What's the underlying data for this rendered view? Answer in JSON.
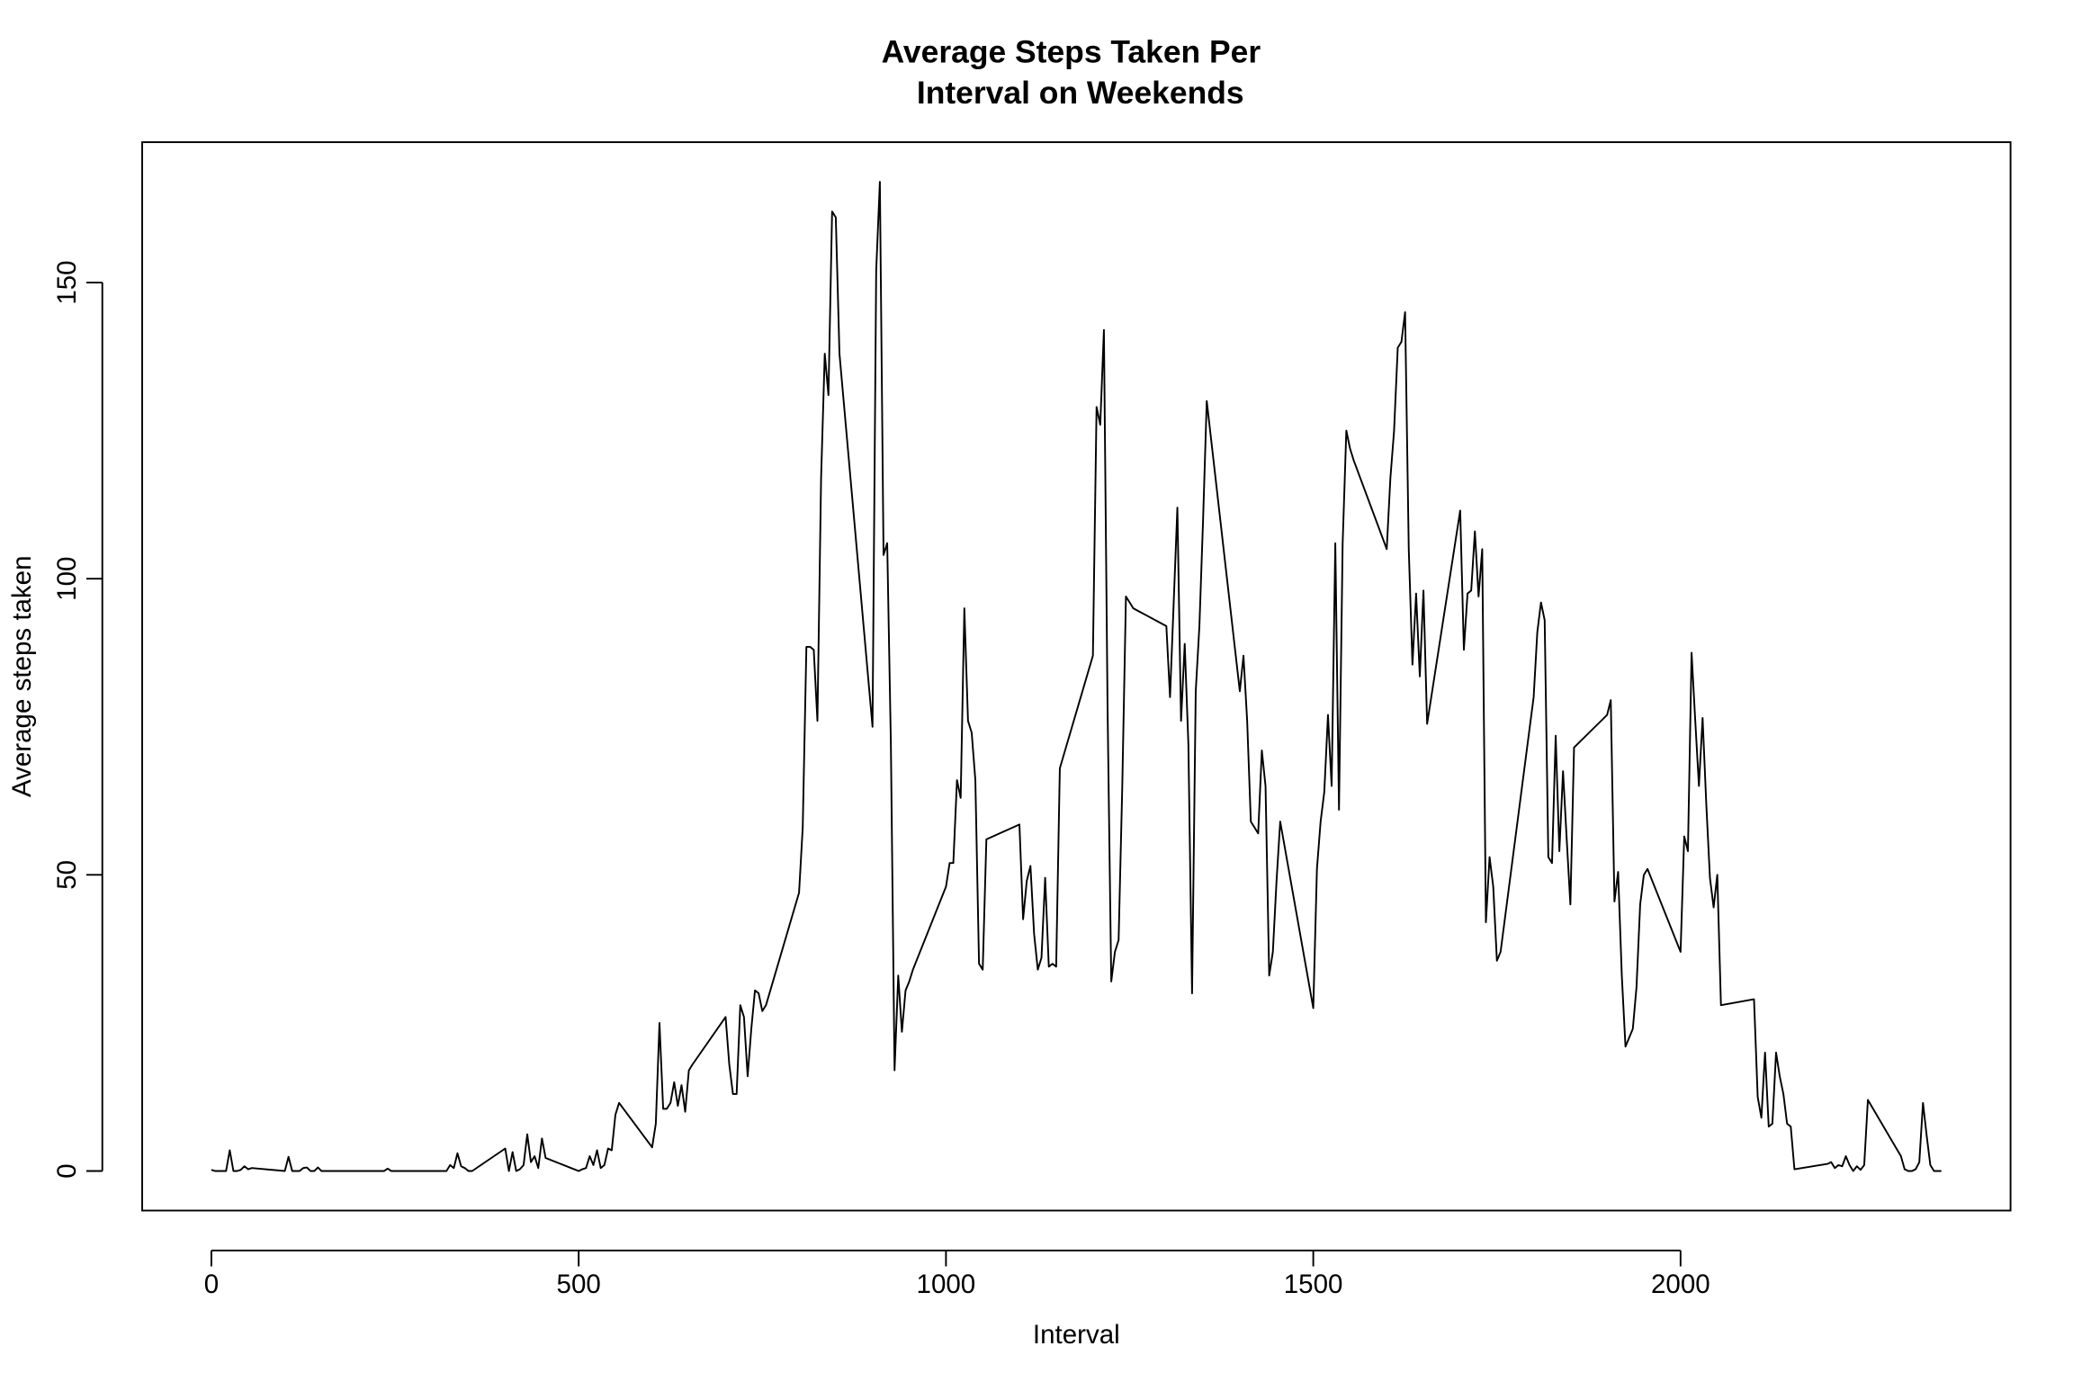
{
  "chart_data": {
    "type": "line",
    "title": [
      "Average Steps Taken Per",
      "Interval on Weekends"
    ],
    "xlabel": "Interval",
    "ylabel": "Average steps taken",
    "color": "#000000",
    "xlim": [
      -94.2,
      2449.2
    ],
    "ylim": [
      -6.68,
      173.7
    ],
    "xticks": [
      0,
      500,
      1000,
      1500,
      2000
    ],
    "yticks": [
      0,
      50,
      100,
      150
    ],
    "grid": false,
    "x": [
      0,
      5,
      10,
      15,
      20,
      25,
      30,
      35,
      40,
      45,
      50,
      55,
      100,
      105,
      110,
      115,
      120,
      125,
      130,
      135,
      140,
      145,
      150,
      155,
      200,
      205,
      210,
      215,
      220,
      225,
      230,
      235,
      240,
      245,
      250,
      255,
      300,
      305,
      310,
      315,
      320,
      325,
      330,
      335,
      340,
      345,
      350,
      355,
      400,
      405,
      410,
      415,
      420,
      425,
      430,
      435,
      440,
      445,
      450,
      455,
      500,
      505,
      510,
      515,
      520,
      525,
      530,
      535,
      540,
      545,
      550,
      555,
      600,
      605,
      610,
      615,
      620,
      625,
      630,
      635,
      640,
      645,
      650,
      655,
      700,
      705,
      710,
      715,
      720,
      725,
      730,
      735,
      740,
      745,
      750,
      755,
      800,
      805,
      810,
      815,
      820,
      825,
      830,
      835,
      840,
      845,
      850,
      855,
      900,
      905,
      910,
      915,
      920,
      925,
      930,
      935,
      940,
      945,
      950,
      955,
      1000,
      1005,
      1010,
      1015,
      1020,
      1025,
      1030,
      1035,
      1040,
      1045,
      1050,
      1055,
      1100,
      1105,
      1110,
      1115,
      1120,
      1125,
      1130,
      1135,
      1140,
      1145,
      1150,
      1155,
      1200,
      1205,
      1210,
      1215,
      1220,
      1225,
      1230,
      1235,
      1240,
      1245,
      1250,
      1255,
      1300,
      1305,
      1310,
      1315,
      1320,
      1325,
      1330,
      1335,
      1340,
      1345,
      1350,
      1355,
      1400,
      1405,
      1410,
      1415,
      1420,
      1425,
      1430,
      1435,
      1440,
      1445,
      1450,
      1455,
      1500,
      1505,
      1510,
      1515,
      1520,
      1525,
      1530,
      1535,
      1540,
      1545,
      1550,
      1555,
      1600,
      1605,
      1610,
      1615,
      1620,
      1625,
      1630,
      1635,
      1640,
      1645,
      1650,
      1655,
      1700,
      1705,
      1710,
      1715,
      1720,
      1725,
      1730,
      1735,
      1740,
      1745,
      1750,
      1755,
      1800,
      1805,
      1810,
      1815,
      1820,
      1825,
      1830,
      1835,
      1840,
      1845,
      1850,
      1855,
      1900,
      1905,
      1910,
      1915,
      1920,
      1925,
      1930,
      1935,
      1940,
      1945,
      1950,
      1955,
      2000,
      2005,
      2010,
      2015,
      2020,
      2025,
      2030,
      2035,
      2040,
      2045,
      2050,
      2055,
      2100,
      2105,
      2110,
      2115,
      2120,
      2125,
      2130,
      2135,
      2140,
      2145,
      2150,
      2155,
      2200,
      2205,
      2210,
      2215,
      2220,
      2225,
      2230,
      2235,
      2240,
      2245,
      2250,
      2255,
      2300,
      2305,
      2310,
      2315,
      2320,
      2325,
      2330,
      2335,
      2340,
      2345,
      2350,
      2355
    ],
    "y": [
      0.2,
      0,
      0,
      0,
      0,
      3.5,
      0,
      0,
      0.2,
      0.8,
      0.3,
      0.5,
      0,
      2.4,
      0,
      0,
      0,
      0.5,
      0.6,
      0,
      0,
      0.6,
      0,
      0,
      0,
      0,
      0,
      0,
      0,
      0,
      0,
      0,
      0.4,
      0,
      0,
      0,
      0,
      0,
      0,
      0,
      0,
      1,
      0.5,
      3,
      0.8,
      0.5,
      0,
      0,
      3.8,
      0,
      3.2,
      0,
      0.3,
      1,
      6.2,
      1.5,
      2.5,
      0.5,
      5.5,
      2.2,
      0,
      0.3,
      0.5,
      2.5,
      1,
      3.5,
      0.5,
      1,
      3.8,
      3.5,
      9.5,
      11.5,
      4,
      8,
      25,
      10.5,
      10.5,
      11.5,
      15,
      11,
      14.5,
      10,
      17,
      18,
      26,
      18,
      13,
      13,
      28,
      26,
      16,
      24,
      30.5,
      30,
      27,
      28,
      47,
      58,
      88.5,
      88.5,
      88,
      76,
      117,
      138,
      131,
      162,
      161,
      138,
      75,
      152,
      167,
      104,
      106,
      72,
      17,
      33,
      23.5,
      30.5,
      32,
      34,
      48,
      52,
      52,
      66,
      63,
      95,
      76,
      74,
      66,
      35,
      34,
      56,
      58.5,
      42.5,
      49,
      51.5,
      40,
      34,
      36,
      49.5,
      34.5,
      35,
      34.5,
      68,
      87,
      129,
      126,
      142,
      78,
      32,
      37,
      39,
      65,
      97,
      96,
      95,
      92,
      80,
      96,
      112,
      76,
      89,
      72,
      30,
      81,
      92,
      110,
      130,
      81,
      87,
      76,
      59,
      58,
      57,
      71,
      65,
      33,
      37,
      49,
      59,
      27.5,
      51,
      59,
      64,
      77,
      65,
      106,
      61,
      106,
      125,
      122,
      120,
      105,
      117,
      125,
      139,
      140,
      145,
      105,
      85.5,
      97.5,
      83.5,
      98,
      75.5,
      111.5,
      88,
      97.5,
      98,
      108,
      97,
      105,
      42,
      53,
      48,
      35.5,
      37,
      80,
      91,
      96,
      93,
      53,
      52,
      73.5,
      54,
      67.5,
      56,
      45,
      71.5,
      77,
      79.5,
      45.5,
      50.5,
      33,
      21,
      22.5,
      24,
      31,
      45,
      50,
      51,
      37,
      56.5,
      54,
      87.5,
      76,
      65,
      76.5,
      62,
      49.5,
      44.5,
      50,
      28,
      29,
      12.5,
      9,
      20,
      7.5,
      8,
      20,
      16,
      13,
      8,
      7.5,
      0.3,
      1.2,
      1.5,
      0.5,
      1,
      0.8,
      2.5,
      1,
      0,
      0.8,
      0.2,
      1,
      12,
      2.5,
      0.3,
      0,
      0,
      0.3,
      1.5,
      11.5,
      6,
      1,
      0,
      0,
      0
    ]
  }
}
